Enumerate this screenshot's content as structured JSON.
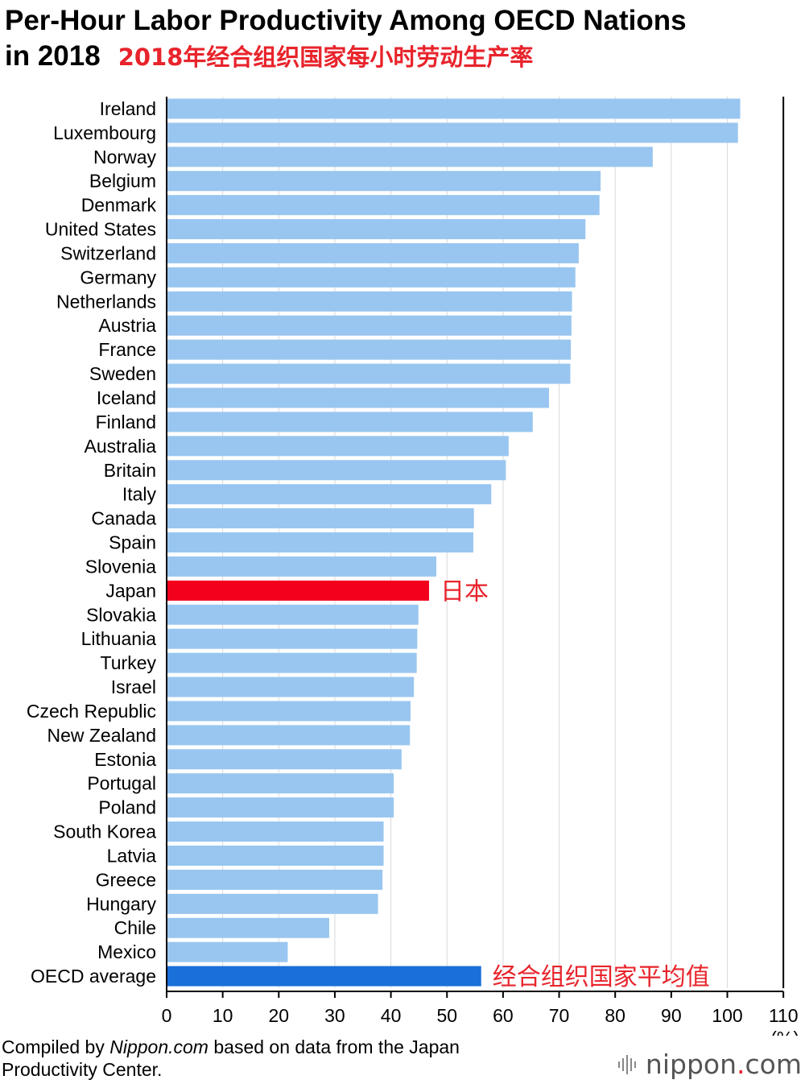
{
  "title": {
    "line1": "Per-Hour Labor Productivity Among OECD Nations",
    "line2": "in 2018",
    "chinese": "2018年经合组织国家每小时劳动生产率"
  },
  "colors": {
    "bar": "#99c6f0",
    "highlight": "#f2001c",
    "average": "#1a6fd8",
    "annotation": "#e8232b"
  },
  "chart_data": {
    "type": "bar",
    "orientation": "horizontal",
    "title": "Per-Hour Labor Productivity Among OECD Nations in 2018",
    "categories": [
      "Ireland",
      "Luxembourg",
      "Norway",
      "Belgium",
      "Denmark",
      "United States",
      "Switzerland",
      "Germany",
      "Netherlands",
      "Austria",
      "France",
      "Sweden",
      "Iceland",
      "Finland",
      "Australia",
      "Britain",
      "Italy",
      "Canada",
      "Spain",
      "Slovenia",
      "Japan",
      "Slovakia",
      "Lithuania",
      "Turkey",
      "Israel",
      "Czech Republic",
      "New Zealand",
      "Estonia",
      "Portugal",
      "Poland",
      "South Korea",
      "Latvia",
      "Greece",
      "Hungary",
      "Chile",
      "Mexico",
      "OECD average"
    ],
    "values": [
      102.3,
      101.9,
      86.7,
      77.4,
      77.2,
      74.7,
      73.5,
      72.9,
      72.3,
      72.2,
      72.1,
      72.0,
      68.2,
      65.3,
      61.0,
      60.5,
      57.9,
      54.8,
      54.7,
      48.1,
      46.8,
      44.9,
      44.7,
      44.6,
      44.1,
      43.5,
      43.4,
      41.9,
      40.5,
      40.5,
      38.7,
      38.7,
      38.5,
      37.7,
      29.0,
      21.6,
      56.1
    ],
    "highlight": "Japan",
    "average_label": "OECD average",
    "annotations": {
      "Japan": "日本",
      "OECD average": "经合组织国家平均值"
    },
    "xlim": [
      0,
      110
    ],
    "xticks": [
      0,
      10,
      20,
      30,
      40,
      50,
      60,
      70,
      80,
      90,
      100,
      110
    ],
    "unit_label": "(%)",
    "grid": true
  },
  "footer": {
    "prefix": "Compiled by ",
    "source": "Nippon.com",
    "suffix": " based on data from the Japan",
    "line2": "Productivity Center."
  },
  "logo": {
    "name": "nippon",
    "dot": ".",
    "tld": "com"
  }
}
